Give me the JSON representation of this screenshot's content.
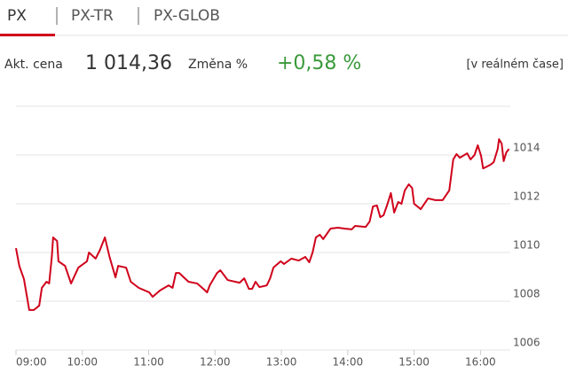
{
  "tabs": [
    "PX",
    "PX-TR",
    "PX-GLOB"
  ],
  "quote": {
    "price_label": "Akt. cena",
    "price": "1 014,36",
    "change_label": "Změna %",
    "change": "+0,58 %",
    "mode": "[v reálném čase]"
  },
  "chart_data": {
    "type": "line",
    "color": "#d0021b",
    "grid": true,
    "xlim": [
      9,
      16.45
    ],
    "ylim": [
      1006,
      1016
    ],
    "xticks": [
      {
        "value": 9,
        "label": "09:00"
      },
      {
        "value": 10,
        "label": "10:00"
      },
      {
        "value": 11,
        "label": "11:00"
      },
      {
        "value": 12,
        "label": "12:00"
      },
      {
        "value": 13,
        "label": "13:00"
      },
      {
        "value": 14,
        "label": "14:00"
      },
      {
        "value": 15,
        "label": "15:00"
      },
      {
        "value": 16,
        "label": "16:00"
      }
    ],
    "yticks": [
      1006,
      1008,
      1010,
      1012,
      1014
    ],
    "x": [
      9.0,
      9.05,
      9.12,
      9.2,
      9.27,
      9.35,
      9.39,
      9.46,
      9.5,
      9.54,
      9.56,
      9.62,
      9.64,
      9.74,
      9.83,
      9.94,
      10.07,
      10.1,
      10.2,
      10.26,
      10.34,
      10.41,
      10.5,
      10.54,
      10.66,
      10.73,
      10.85,
      11.01,
      11.06,
      11.17,
      11.3,
      11.36,
      11.41,
      11.46,
      11.6,
      11.73,
      11.84,
      11.88,
      11.92,
      12.03,
      12.08,
      12.19,
      12.37,
      12.44,
      12.51,
      12.56,
      12.61,
      12.67,
      12.78,
      12.83,
      12.88,
      12.99,
      13.04,
      13.15,
      13.26,
      13.36,
      13.42,
      13.47,
      13.52,
      13.58,
      13.63,
      13.74,
      13.85,
      13.95,
      14.06,
      14.11,
      14.27,
      14.33,
      14.38,
      14.44,
      14.49,
      14.54,
      14.6,
      14.65,
      14.7,
      14.76,
      14.81,
      14.86,
      14.92,
      14.97,
      15.0,
      15.1,
      15.21,
      15.32,
      15.43,
      15.53,
      15.59,
      15.64,
      15.69,
      15.8,
      15.85,
      15.91,
      15.96,
      16.01,
      16.04,
      16.15,
      16.2,
      16.26,
      16.28,
      16.32,
      16.35,
      16.39,
      16.43
    ],
    "values": [
      1010.18,
      1009.45,
      1008.91,
      1007.64,
      1007.64,
      1007.82,
      1008.55,
      1008.8,
      1008.73,
      1009.82,
      1010.62,
      1010.47,
      1009.64,
      1009.45,
      1008.73,
      1009.38,
      1009.64,
      1010.0,
      1009.75,
      1010.07,
      1010.62,
      1009.82,
      1008.98,
      1009.45,
      1009.38,
      1008.8,
      1008.55,
      1008.36,
      1008.18,
      1008.44,
      1008.65,
      1008.55,
      1009.16,
      1009.16,
      1008.8,
      1008.73,
      1008.47,
      1008.36,
      1008.65,
      1009.16,
      1009.27,
      1008.87,
      1008.76,
      1008.94,
      1008.51,
      1008.51,
      1008.8,
      1008.58,
      1008.65,
      1008.94,
      1009.38,
      1009.64,
      1009.53,
      1009.75,
      1009.67,
      1009.82,
      1009.6,
      1010.0,
      1010.62,
      1010.73,
      1010.55,
      1010.98,
      1011.02,
      1010.98,
      1010.95,
      1011.09,
      1011.05,
      1011.27,
      1011.89,
      1011.93,
      1011.45,
      1011.53,
      1012.0,
      1012.44,
      1011.64,
      1012.07,
      1012.0,
      1012.55,
      1012.8,
      1012.65,
      1012.0,
      1011.78,
      1012.22,
      1012.15,
      1012.15,
      1012.55,
      1013.82,
      1014.04,
      1013.89,
      1014.07,
      1013.82,
      1014.0,
      1014.4,
      1013.96,
      1013.45,
      1013.6,
      1013.71,
      1014.25,
      1014.65,
      1014.47,
      1013.75,
      1014.11,
      1014.25
    ]
  }
}
